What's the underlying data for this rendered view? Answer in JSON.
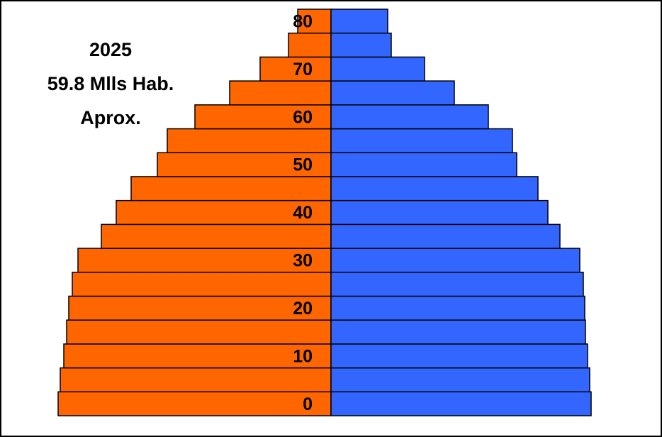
{
  "chart_data": {
    "type": "pyramid",
    "annotation": [
      "2025",
      "59.8  Mlls Hab.",
      "Aprox."
    ],
    "categories": [
      "0",
      null,
      "10",
      null,
      "20",
      null,
      "30",
      null,
      "40",
      null,
      "50",
      null,
      "60",
      null,
      "70",
      null,
      "80"
    ],
    "series": [
      {
        "color": "#ff6600",
        "side": "left",
        "values": [
          385,
          382,
          377,
          373,
          370,
          365,
          357,
          324,
          303,
          282,
          245,
          231,
          192,
          143,
          100,
          60,
          47
        ]
      },
      {
        "color": "#3366ff",
        "side": "right",
        "values": [
          367,
          365,
          362,
          359,
          358,
          356,
          351,
          323,
          306,
          292,
          262,
          256,
          222,
          174,
          132,
          85,
          80
        ]
      }
    ]
  }
}
